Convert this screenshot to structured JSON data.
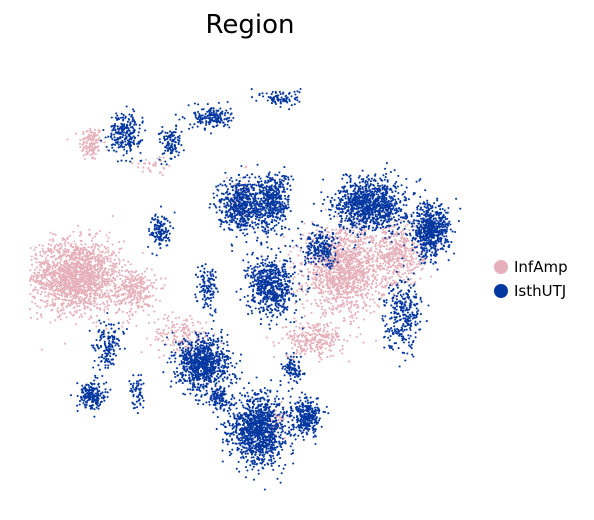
{
  "colors": {
    "InfAmp": "#e6b0bb",
    "IsthUTJ": "#0537a0"
  },
  "chart_data": {
    "type": "scatter",
    "title": "Region",
    "xlabel": "",
    "ylabel": "",
    "axes_visible": false,
    "grid": false,
    "legend_position": "right",
    "series": [
      {
        "name": "InfAmp",
        "color": "#e6b0bb",
        "clusters": [
          {
            "center": [
              2.5,
              9.8
            ],
            "spread": [
              0.5,
              0.6
            ],
            "count": 130
          },
          {
            "center": [
              5.5,
              9.0
            ],
            "spread": [
              0.9,
              0.4
            ],
            "count": 30
          },
          {
            "center": [
              1.8,
              4.8
            ],
            "spread": [
              1.9,
              1.2
            ],
            "count": 1700
          },
          {
            "center": [
              4.6,
              4.2
            ],
            "spread": [
              0.9,
              0.8
            ],
            "count": 260
          },
          {
            "center": [
              6.8,
              2.6
            ],
            "spread": [
              1.3,
              0.7
            ],
            "count": 160
          },
          {
            "center": [
              14.4,
              5.0
            ],
            "spread": [
              1.7,
              1.4
            ],
            "count": 1300
          },
          {
            "center": [
              17.0,
              5.6
            ],
            "spread": [
              1.1,
              1.1
            ],
            "count": 420
          },
          {
            "center": [
              13.0,
              2.4
            ],
            "spread": [
              1.3,
              0.6
            ],
            "count": 260
          },
          {
            "center": [
              9.6,
              7.8
            ],
            "spread": [
              0.5,
              0.8
            ],
            "count": 40
          },
          {
            "center": [
              11.3,
              -0.5
            ],
            "spread": [
              0.4,
              0.5
            ],
            "count": 40
          }
        ]
      },
      {
        "name": "IsthUTJ",
        "color": "#0537a0",
        "clusters": [
          {
            "center": [
              4.1,
              10.2
            ],
            "spread": [
              0.7,
              0.7
            ],
            "count": 240
          },
          {
            "center": [
              6.3,
              9.8
            ],
            "spread": [
              0.5,
              0.6
            ],
            "count": 110
          },
          {
            "center": [
              8.2,
              10.8
            ],
            "spread": [
              0.8,
              0.4
            ],
            "count": 170
          },
          {
            "center": [
              11.5,
              11.5
            ],
            "spread": [
              0.8,
              0.3
            ],
            "count": 90
          },
          {
            "center": [
              9.5,
              7.5
            ],
            "spread": [
              0.9,
              0.9
            ],
            "count": 520
          },
          {
            "center": [
              11.0,
              7.6
            ],
            "spread": [
              0.8,
              1.0
            ],
            "count": 480
          },
          {
            "center": [
              5.8,
              6.5
            ],
            "spread": [
              0.5,
              0.6
            ],
            "count": 130
          },
          {
            "center": [
              11.0,
              4.4
            ],
            "spread": [
              1.0,
              1.0
            ],
            "count": 620
          },
          {
            "center": [
              15.7,
              7.5
            ],
            "spread": [
              1.5,
              0.9
            ],
            "count": 1000
          },
          {
            "center": [
              18.5,
              6.5
            ],
            "spread": [
              0.8,
              0.9
            ],
            "count": 600
          },
          {
            "center": [
              13.4,
              5.8
            ],
            "spread": [
              0.8,
              0.6
            ],
            "count": 220
          },
          {
            "center": [
              17.2,
              3.4
            ],
            "spread": [
              0.8,
              1.2
            ],
            "count": 300
          },
          {
            "center": [
              7.8,
              1.5
            ],
            "spread": [
              1.1,
              0.9
            ],
            "count": 850
          },
          {
            "center": [
              10.4,
              -1.0
            ],
            "spread": [
              1.2,
              1.2
            ],
            "count": 1100
          },
          {
            "center": [
              12.7,
              -0.5
            ],
            "spread": [
              0.6,
              0.6
            ],
            "count": 300
          },
          {
            "center": [
              12.0,
              1.3
            ],
            "spread": [
              0.4,
              0.4
            ],
            "count": 100
          },
          {
            "center": [
              2.5,
              0.3
            ],
            "spread": [
              0.6,
              0.5
            ],
            "count": 200
          },
          {
            "center": [
              3.3,
              2.2
            ],
            "spread": [
              0.6,
              0.8
            ],
            "count": 150
          },
          {
            "center": [
              4.7,
              0.5
            ],
            "spread": [
              0.3,
              0.6
            ],
            "count": 60
          },
          {
            "center": [
              8.0,
              4.4
            ],
            "spread": [
              0.4,
              0.8
            ],
            "count": 120
          },
          {
            "center": [
              8.6,
              0.2
            ],
            "spread": [
              0.5,
              0.4
            ],
            "count": 120
          }
        ]
      }
    ]
  }
}
